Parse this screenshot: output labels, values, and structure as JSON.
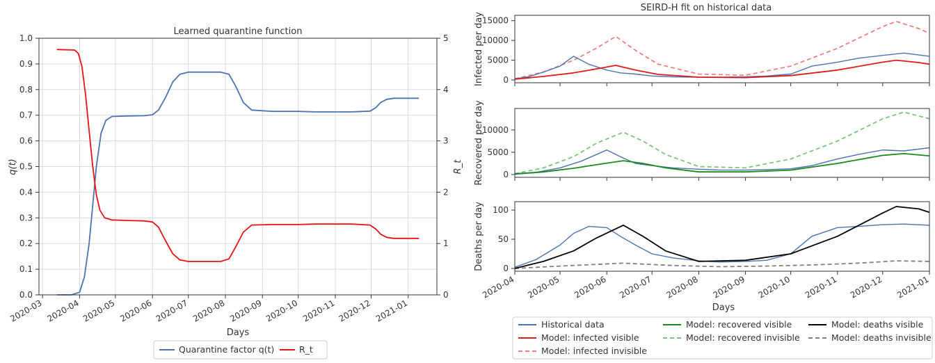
{
  "chart_data": [
    {
      "type": "line",
      "title": "Learned quarantine function",
      "xlabel": "Days",
      "ylabel_left": "q(t)",
      "ylabel_right": "R_t",
      "ylim_left": [
        0,
        1
      ],
      "ylim_right": [
        0,
        5
      ],
      "grid": true,
      "legend_placement": "bottom-center",
      "x_tick_labels": [
        "2020-03",
        "2020-04",
        "2020-05",
        "2020-06",
        "2020-07",
        "2020-08",
        "2020-09",
        "2020-10",
        "2020-11",
        "2020-12",
        "2021-01"
      ],
      "left_tick_labels": [
        "0.0",
        "0.1",
        "0.2",
        "0.3",
        "0.4",
        "0.5",
        "0.6",
        "0.7",
        "0.8",
        "0.9",
        "1.0"
      ],
      "right_tick_labels": [
        "0",
        "1",
        "2",
        "3",
        "4",
        "5"
      ],
      "legend": [
        {
          "label": "Quarantine factor q(t)",
          "color": "#4c72b0"
        },
        {
          "label": "R_t",
          "color": "#ee1111"
        }
      ],
      "series": [
        {
          "name": "Quarantine factor q(t)",
          "axis": "left",
          "color": "#4c72b0",
          "x": [
            "2020-03-13",
            "2020-03-25",
            "2020-04-01",
            "2020-04-05",
            "2020-04-09",
            "2020-04-12",
            "2020-04-15",
            "2020-04-19",
            "2020-04-23",
            "2020-04-28",
            "2020-05-10",
            "2020-05-25",
            "2020-06-01",
            "2020-06-06",
            "2020-06-12",
            "2020-06-18",
            "2020-06-24",
            "2020-07-01",
            "2020-07-15",
            "2020-07-28",
            "2020-08-04",
            "2020-08-10",
            "2020-08-16",
            "2020-08-23",
            "2020-09-10",
            "2020-10-01",
            "2020-10-15",
            "2020-11-01",
            "2020-11-15",
            "2020-11-30",
            "2020-12-05",
            "2020-12-09",
            "2020-12-14",
            "2020-12-20",
            "2021-01-01",
            "2021-01-10"
          ],
          "values": [
            0.0,
            0.0,
            0.01,
            0.07,
            0.2,
            0.35,
            0.5,
            0.63,
            0.68,
            0.695,
            0.697,
            0.698,
            0.702,
            0.72,
            0.77,
            0.83,
            0.86,
            0.868,
            0.868,
            0.868,
            0.86,
            0.81,
            0.75,
            0.72,
            0.715,
            0.715,
            0.713,
            0.713,
            0.713,
            0.716,
            0.73,
            0.75,
            0.762,
            0.766,
            0.766,
            0.766
          ]
        },
        {
          "name": "R_t",
          "axis": "right",
          "color": "#ee1111",
          "x": [
            "2020-03-13",
            "2020-03-28",
            "2020-03-31",
            "2020-04-03",
            "2020-04-06",
            "2020-04-09",
            "2020-04-12",
            "2020-04-15",
            "2020-04-18",
            "2020-04-22",
            "2020-04-28",
            "2020-05-10",
            "2020-05-25",
            "2020-06-01",
            "2020-06-06",
            "2020-06-12",
            "2020-06-18",
            "2020-06-24",
            "2020-07-01",
            "2020-07-15",
            "2020-07-28",
            "2020-08-04",
            "2020-08-10",
            "2020-08-16",
            "2020-08-23",
            "2020-09-10",
            "2020-10-01",
            "2020-10-15",
            "2020-11-01",
            "2020-11-15",
            "2020-11-30",
            "2020-12-05",
            "2020-12-09",
            "2020-12-14",
            "2020-12-20",
            "2021-01-01",
            "2021-01-10"
          ],
          "values": [
            4.78,
            4.77,
            4.7,
            4.45,
            3.9,
            3.2,
            2.5,
            1.95,
            1.65,
            1.5,
            1.46,
            1.45,
            1.44,
            1.42,
            1.32,
            1.05,
            0.8,
            0.68,
            0.65,
            0.65,
            0.65,
            0.7,
            0.95,
            1.22,
            1.36,
            1.37,
            1.37,
            1.38,
            1.38,
            1.38,
            1.36,
            1.28,
            1.18,
            1.12,
            1.1,
            1.1,
            1.1
          ]
        }
      ]
    },
    {
      "type": "line",
      "title": "SEIRD-H fit on historical data",
      "xlabel": "Days",
      "x_tick_labels": [
        "2020-04",
        "2020-05",
        "2020-06",
        "2020-07",
        "2020-08",
        "2020-09",
        "2020-10",
        "2020-11",
        "2020-12",
        "2021-01"
      ],
      "legend_placement": "bottom",
      "legend": [
        {
          "label": "Historical data",
          "color": "#4c72b0",
          "dash": "solid"
        },
        {
          "label": "Model: recovered visible",
          "color": "#1a8a1a",
          "dash": "solid"
        },
        {
          "label": "Model: deaths visible",
          "color": "#000000",
          "dash": "solid"
        },
        {
          "label": "Model: infected visible",
          "color": "#dd1c1c",
          "dash": "solid"
        },
        {
          "label": "Model: recovered invisible",
          "color": "#7cc47c",
          "dash": "dashed"
        },
        {
          "label": "Model: deaths invisible",
          "color": "#7f7f7f",
          "dash": "dashed"
        },
        {
          "label": "Model: infected invisible",
          "color": "#f08080",
          "dash": "dashed"
        }
      ],
      "panels": [
        {
          "ylabel": "Infected per day",
          "ylim": [
            0,
            16000
          ],
          "y_tick_labels": [
            "0",
            "5000",
            "10000",
            "15000"
          ],
          "series": [
            {
              "name": "Historical data",
              "color": "#4c72b0",
              "dash": "solid",
              "x": [
                "2020-04-01",
                "2020-04-10",
                "2020-04-20",
                "2020-05-01",
                "2020-05-10",
                "2020-05-20",
                "2020-06-01",
                "2020-06-10",
                "2020-06-20",
                "2020-07-01",
                "2020-07-15",
                "2020-08-01",
                "2020-08-15",
                "2020-09-01",
                "2020-09-15",
                "2020-10-01",
                "2020-10-15",
                "2020-11-01",
                "2020-11-15",
                "2020-12-01",
                "2020-12-15",
                "2021-01-01"
              ],
              "values": [
                300,
                800,
                2000,
                3500,
                6000,
                4000,
                2500,
                1800,
                1500,
                1000,
                800,
                700,
                700,
                800,
                1000,
                1500,
                3500,
                4500,
                5500,
                6200,
                6800,
                6000
              ]
            },
            {
              "name": "Model: infected visible",
              "color": "#dd1c1c",
              "dash": "solid",
              "x": [
                "2020-04-01",
                "2020-04-20",
                "2020-05-10",
                "2020-05-25",
                "2020-06-07",
                "2020-06-20",
                "2020-07-05",
                "2020-08-01",
                "2020-09-01",
                "2020-10-01",
                "2020-11-01",
                "2020-12-01",
                "2020-12-10",
                "2020-12-25",
                "2021-01-01"
              ],
              "values": [
                200,
                900,
                1800,
                2800,
                3700,
                2500,
                1400,
                700,
                600,
                1100,
                2500,
                4500,
                5000,
                4400,
                4000
              ]
            },
            {
              "name": "Model: infected invisible",
              "color": "#f08080",
              "dash": "dashed",
              "x": [
                "2020-04-01",
                "2020-04-20",
                "2020-05-10",
                "2020-05-25",
                "2020-06-07",
                "2020-06-20",
                "2020-07-05",
                "2020-08-01",
                "2020-09-01",
                "2020-10-01",
                "2020-11-01",
                "2020-12-01",
                "2020-12-10",
                "2020-12-25",
                "2021-01-01"
              ],
              "values": [
                300,
                2000,
                5000,
                8000,
                11000,
                7500,
                4000,
                1500,
                1200,
                3500,
                8000,
                13500,
                14800,
                13000,
                11800
              ]
            }
          ]
        },
        {
          "ylabel": "Recovered per day",
          "ylim": [
            0,
            14500
          ],
          "y_tick_labels": [
            "0",
            "5000",
            "10000"
          ],
          "series": [
            {
              "name": "Historical data",
              "color": "#4c72b0",
              "dash": "solid",
              "x": [
                "2020-04-01",
                "2020-04-15",
                "2020-05-01",
                "2020-05-15",
                "2020-06-01",
                "2020-06-10",
                "2020-06-20",
                "2020-07-01",
                "2020-07-15",
                "2020-08-01",
                "2020-08-15",
                "2020-09-01",
                "2020-09-15",
                "2020-10-01",
                "2020-10-15",
                "2020-11-01",
                "2020-11-15",
                "2020-12-01",
                "2020-12-15",
                "2021-01-01"
              ],
              "values": [
                200,
                500,
                1500,
                3000,
                5500,
                4000,
                2500,
                2000,
                1500,
                1200,
                1000,
                1000,
                1100,
                1300,
                2000,
                3500,
                4500,
                5500,
                5300,
                6000
              ]
            },
            {
              "name": "Model: recovered visible",
              "color": "#1a8a1a",
              "dash": "solid",
              "x": [
                "2020-04-01",
                "2020-04-20",
                "2020-05-10",
                "2020-05-25",
                "2020-06-12",
                "2020-06-25",
                "2020-07-10",
                "2020-08-01",
                "2020-09-01",
                "2020-10-01",
                "2020-11-01",
                "2020-12-01",
                "2020-12-15",
                "2021-01-01"
              ],
              "values": [
                100,
                600,
                1400,
                2200,
                3100,
                2500,
                1500,
                600,
                600,
                1000,
                2500,
                4300,
                4700,
                4200
              ]
            },
            {
              "name": "Model: recovered invisible",
              "color": "#7cc47c",
              "dash": "dashed",
              "x": [
                "2020-04-01",
                "2020-04-20",
                "2020-05-10",
                "2020-05-25",
                "2020-06-12",
                "2020-06-25",
                "2020-07-10",
                "2020-08-01",
                "2020-09-01",
                "2020-10-01",
                "2020-11-01",
                "2020-12-01",
                "2020-12-15",
                "2021-01-01"
              ],
              "values": [
                200,
                1500,
                4000,
                7000,
                9500,
                7500,
                4500,
                1800,
                1500,
                3500,
                7500,
                12500,
                14000,
                12500
              ]
            }
          ]
        },
        {
          "ylabel": "Deaths per day",
          "ylim": [
            0,
            112
          ],
          "y_tick_labels": [
            "0",
            "50",
            "100"
          ],
          "series": [
            {
              "name": "Historical data",
              "color": "#4c72b0",
              "dash": "solid",
              "x": [
                "2020-04-01",
                "2020-04-15",
                "2020-05-01",
                "2020-05-10",
                "2020-05-20",
                "2020-06-01",
                "2020-06-10",
                "2020-06-20",
                "2020-07-01",
                "2020-07-15",
                "2020-08-01",
                "2020-08-15",
                "2020-09-01",
                "2020-09-15",
                "2020-10-01",
                "2020-10-15",
                "2020-11-01",
                "2020-11-15",
                "2020-12-01",
                "2020-12-15",
                "2021-01-01"
              ],
              "values": [
                2,
                15,
                40,
                60,
                72,
                70,
                55,
                40,
                25,
                18,
                13,
                11,
                12,
                14,
                25,
                55,
                70,
                72,
                75,
                76,
                74
              ]
            },
            {
              "name": "Model: deaths visible",
              "color": "#000000",
              "dash": "solid",
              "x": [
                "2020-04-01",
                "2020-04-20",
                "2020-05-10",
                "2020-05-25",
                "2020-06-12",
                "2020-06-25",
                "2020-07-10",
                "2020-08-01",
                "2020-09-01",
                "2020-10-01",
                "2020-11-01",
                "2020-12-01",
                "2020-12-10",
                "2020-12-25",
                "2021-01-01"
              ],
              "values": [
                0,
                12,
                30,
                52,
                74,
                55,
                30,
                12,
                14,
                25,
                55,
                95,
                106,
                102,
                96
              ]
            },
            {
              "name": "Model: deaths invisible",
              "color": "#7f7f7f",
              "dash": "dashed",
              "x": [
                "2020-04-01",
                "2020-05-01",
                "2020-06-12",
                "2020-07-15",
                "2020-08-15",
                "2020-09-15",
                "2020-10-15",
                "2020-11-15",
                "2020-12-10",
                "2021-01-01"
              ],
              "values": [
                0,
                4,
                9,
                5,
                3,
                4,
                6,
                9,
                13,
                12
              ]
            }
          ]
        }
      ]
    }
  ]
}
